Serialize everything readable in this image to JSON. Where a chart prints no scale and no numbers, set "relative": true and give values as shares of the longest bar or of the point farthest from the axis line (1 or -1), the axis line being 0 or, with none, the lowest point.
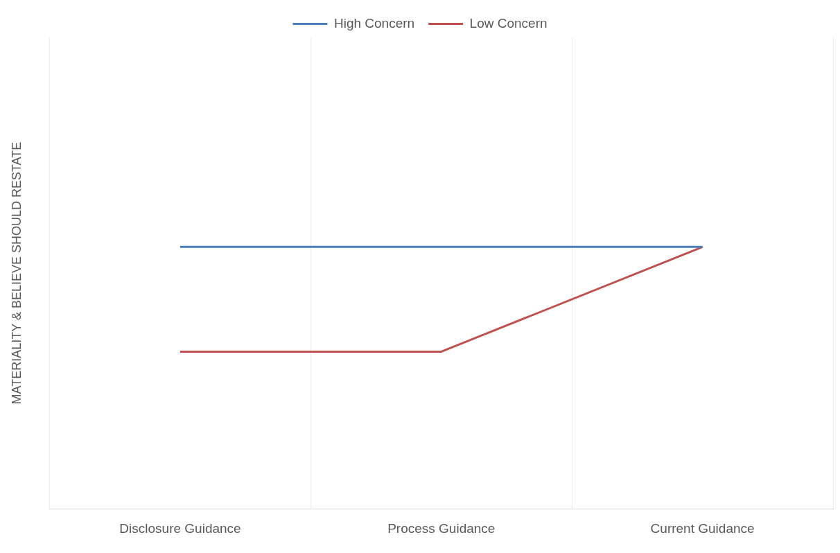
{
  "chart_data": {
    "type": "line",
    "ylabel": "MATERIALITY & BELIEVE SHOULD RESTATE",
    "categories": [
      "Disclosure Guidance",
      "Process Guidance",
      "Current Guidance"
    ],
    "relative": true,
    "series": [
      {
        "name": "High Concern",
        "color": "#4a7ebb",
        "values": [
          1,
          1,
          1
        ]
      },
      {
        "name": "Low Concern",
        "color": "#c0504d",
        "values": [
          0.6,
          0.6,
          1
        ]
      }
    ],
    "grid": "x",
    "legend": "top",
    "marker": "none",
    "line_style": "solid"
  }
}
